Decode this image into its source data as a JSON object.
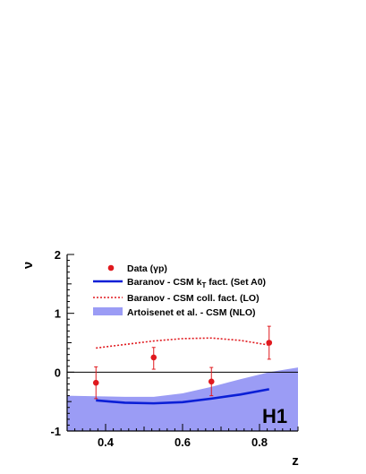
{
  "chart_data": {
    "type": "line",
    "xlabel": "z",
    "ylabel": "ν",
    "xlim": [
      0.3,
      0.9
    ],
    "ylim": [
      -1,
      2
    ],
    "x_ticks": [
      0.4,
      0.6,
      0.8
    ],
    "x_tick_labels": [
      "0.4",
      "0.6",
      "0.8"
    ],
    "y_ticks": [
      -1,
      0,
      1,
      2
    ],
    "y_tick_labels": [
      "-1",
      "0",
      "1",
      "2"
    ],
    "reference_line": 0,
    "grid": false,
    "legend_position": "top-left",
    "logo_text": "H1",
    "data_points": {
      "name": "Data (γp)",
      "color": "#e0191e",
      "x": [
        0.375,
        0.525,
        0.675,
        0.825
      ],
      "y": [
        -0.18,
        0.25,
        -0.16,
        0.5
      ],
      "err_up": [
        0.27,
        0.17,
        0.24,
        0.28
      ],
      "err_down": [
        0.27,
        0.2,
        0.24,
        0.28
      ]
    },
    "series": [
      {
        "name": "Baranov - CSM k",
        "name_subscript": "T",
        "name_suffix": " fact. (Set A0)",
        "style": "solid",
        "color": "#0b1fd6",
        "x": [
          0.375,
          0.45,
          0.525,
          0.6,
          0.675,
          0.75,
          0.825
        ],
        "y": [
          -0.48,
          -0.52,
          -0.53,
          -0.51,
          -0.45,
          -0.38,
          -0.29
        ]
      },
      {
        "name": "Baranov - CSM coll. fact. (LO)",
        "style": "dotted",
        "color": "#e0191e",
        "x": [
          0.375,
          0.45,
          0.525,
          0.6,
          0.675,
          0.75,
          0.825
        ],
        "y": [
          0.41,
          0.47,
          0.53,
          0.57,
          0.58,
          0.54,
          0.46
        ]
      }
    ],
    "band": {
      "name": "Artoisenet et al. - CSM (NLO)",
      "color": "#9b9cf5",
      "x": [
        0.3,
        0.375,
        0.45,
        0.525,
        0.6,
        0.675,
        0.75,
        0.825,
        0.9
      ],
      "upper": [
        -0.4,
        -0.41,
        -0.42,
        -0.42,
        -0.36,
        -0.25,
        -0.12,
        0.0,
        0.08
      ],
      "lower": [
        -1,
        -1,
        -1,
        -1,
        -1,
        -1,
        -1,
        -1,
        -1
      ]
    }
  }
}
